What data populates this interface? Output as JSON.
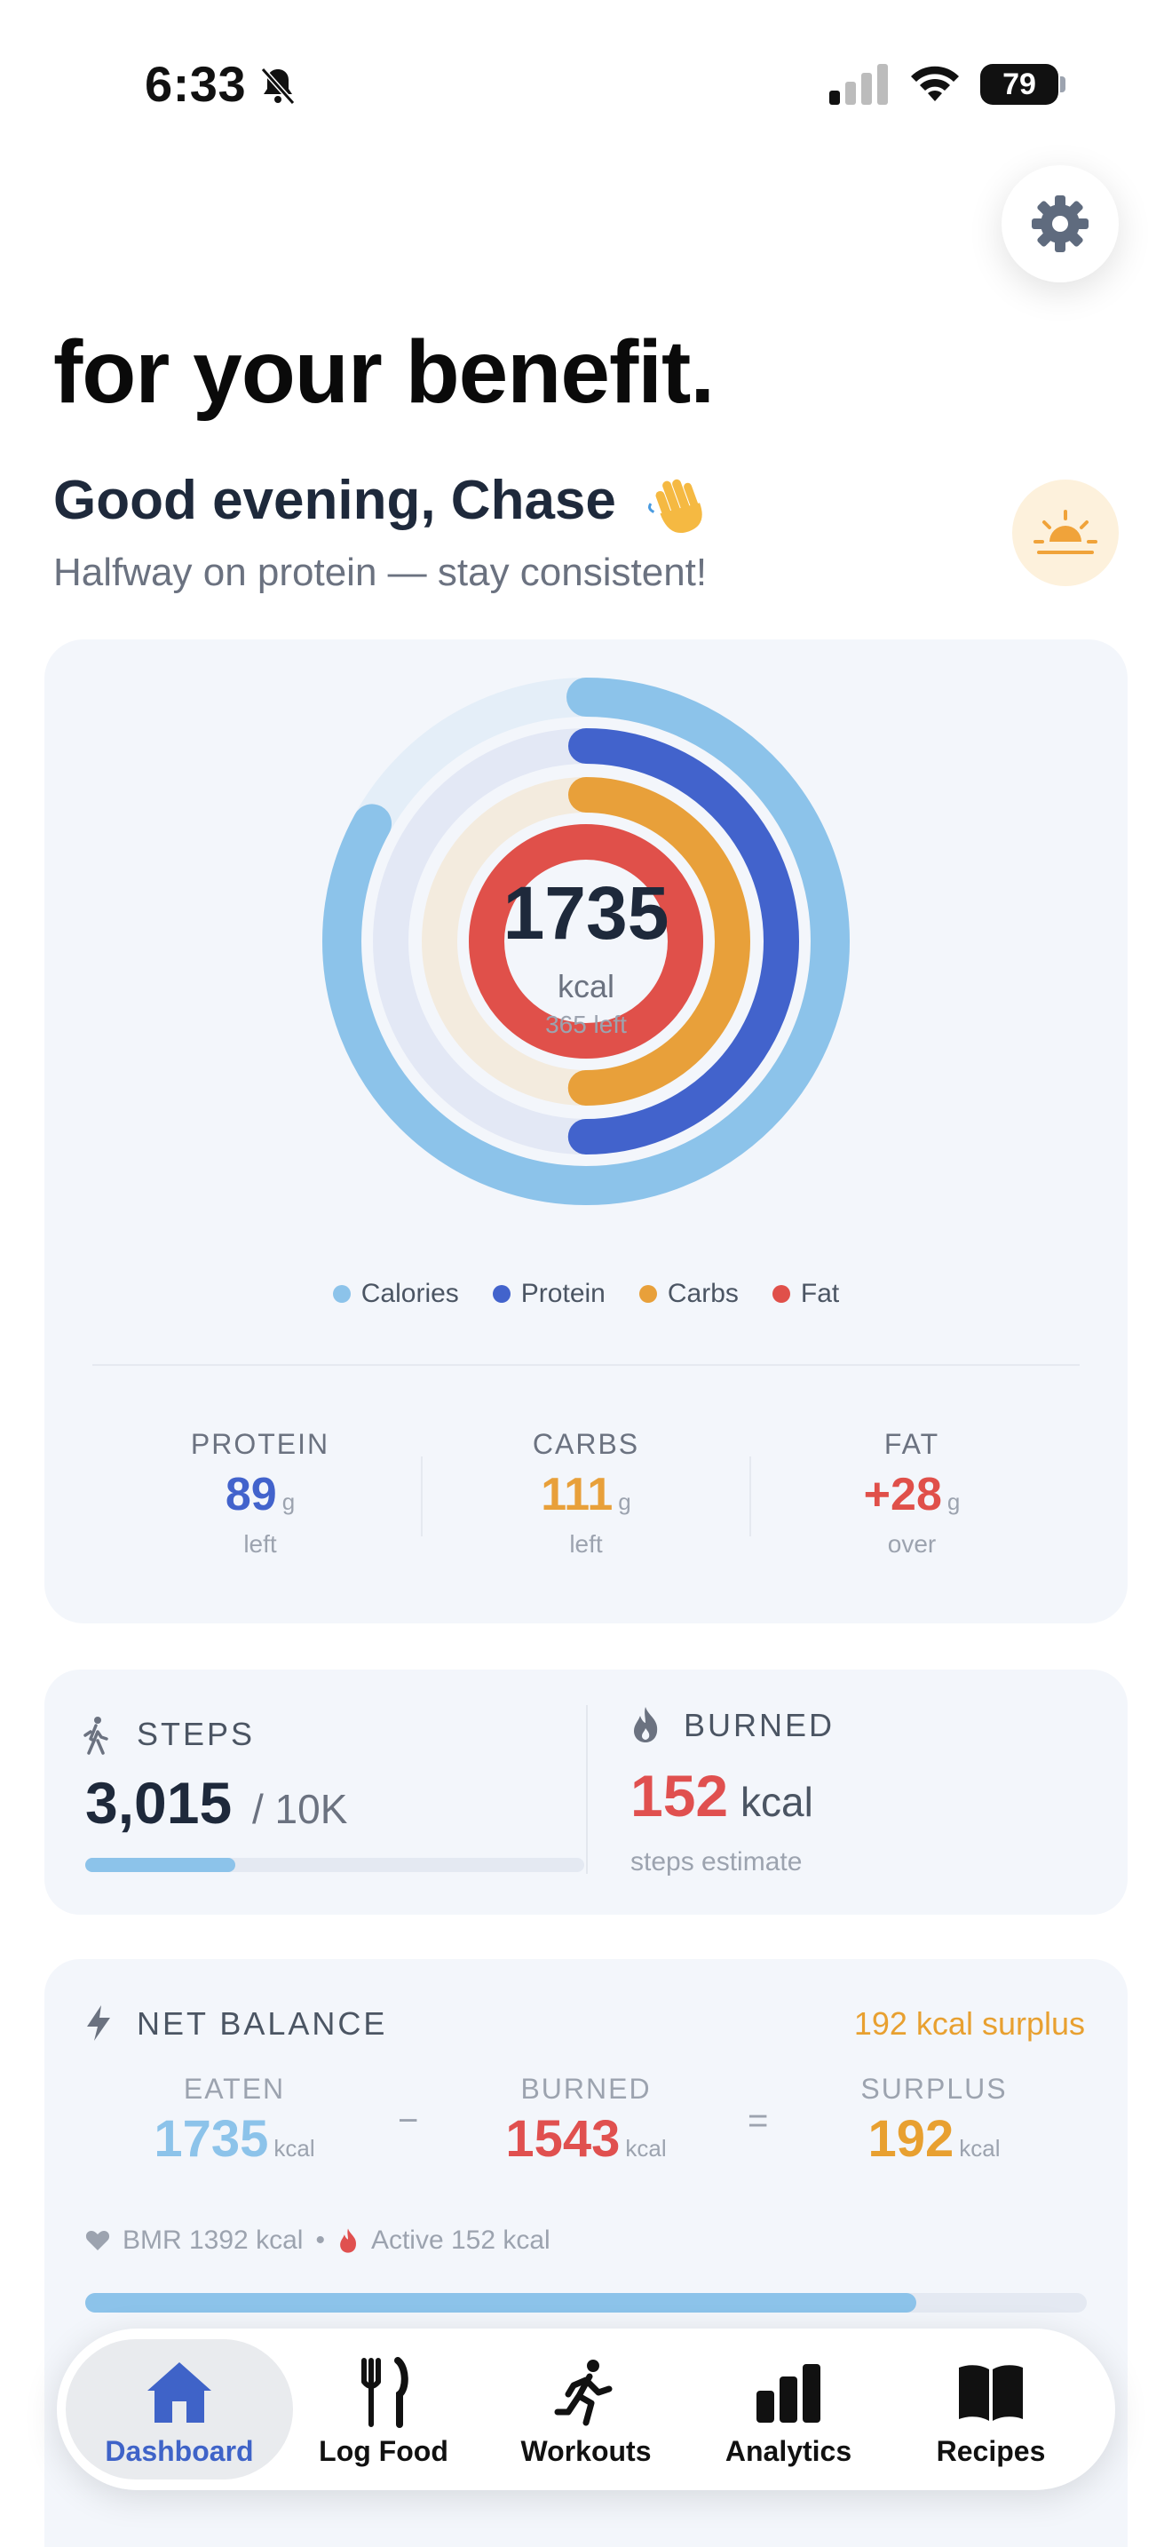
{
  "status_bar": {
    "time": "6:33",
    "battery": "79"
  },
  "header": {
    "hero_title": "for your benefit.",
    "greeting": "Good evening, Chase",
    "subtitle": "Halfway on protein — stay consistent!"
  },
  "rings": {
    "center_value": "1735",
    "center_unit": "kcal",
    "center_remaining": "365 left",
    "legend": [
      {
        "label": "Calories",
        "color": "#8cc3ea"
      },
      {
        "label": "Protein",
        "color": "#4263cc"
      },
      {
        "label": "Carbs",
        "color": "#e8a03a"
      },
      {
        "label": "Fat",
        "color": "#e0504a"
      }
    ],
    "progress": {
      "calories": 0.83,
      "protein": 0.5,
      "carbs": 0.5,
      "fat": 1.0
    }
  },
  "macros": [
    {
      "label": "PROTEIN",
      "value": "89",
      "unit": "g",
      "sub": "left",
      "color": "#4263cc"
    },
    {
      "label": "CARBS",
      "value": "111",
      "unit": "g",
      "sub": "left",
      "color": "#e8a03a"
    },
    {
      "label": "FAT",
      "value": "+28",
      "unit": "g",
      "sub": "over",
      "color": "#e0504a"
    }
  ],
  "activity": {
    "steps_label": "STEPS",
    "steps_value": "3,015",
    "steps_goal": "/ 10K",
    "steps_progress": 0.3015,
    "burned_label": "BURNED",
    "burned_value": "152",
    "burned_unit": "kcal",
    "burned_sub": "steps estimate"
  },
  "net_balance": {
    "label": "NET BALANCE",
    "status": "192 kcal surplus",
    "eaten_label": "EATEN",
    "eaten_value": "1735",
    "burned_label": "BURNED",
    "burned_value": "1543",
    "surplus_label": "SURPLUS",
    "surplus_value": "192",
    "unit": "kcal",
    "minus": "−",
    "equals": "=",
    "bmr": "BMR 1392 kcal",
    "separator": "•",
    "active": "Active 152 kcal",
    "progress": 0.83
  },
  "tabs": [
    {
      "label": "Dashboard",
      "icon": "house-icon",
      "active": true
    },
    {
      "label": "Log Food",
      "icon": "fork-knife-icon",
      "active": false
    },
    {
      "label": "Workouts",
      "icon": "running-figure-icon",
      "active": false
    },
    {
      "label": "Analytics",
      "icon": "bar-chart-icon",
      "active": false
    },
    {
      "label": "Recipes",
      "icon": "open-book-icon",
      "active": false
    }
  ]
}
